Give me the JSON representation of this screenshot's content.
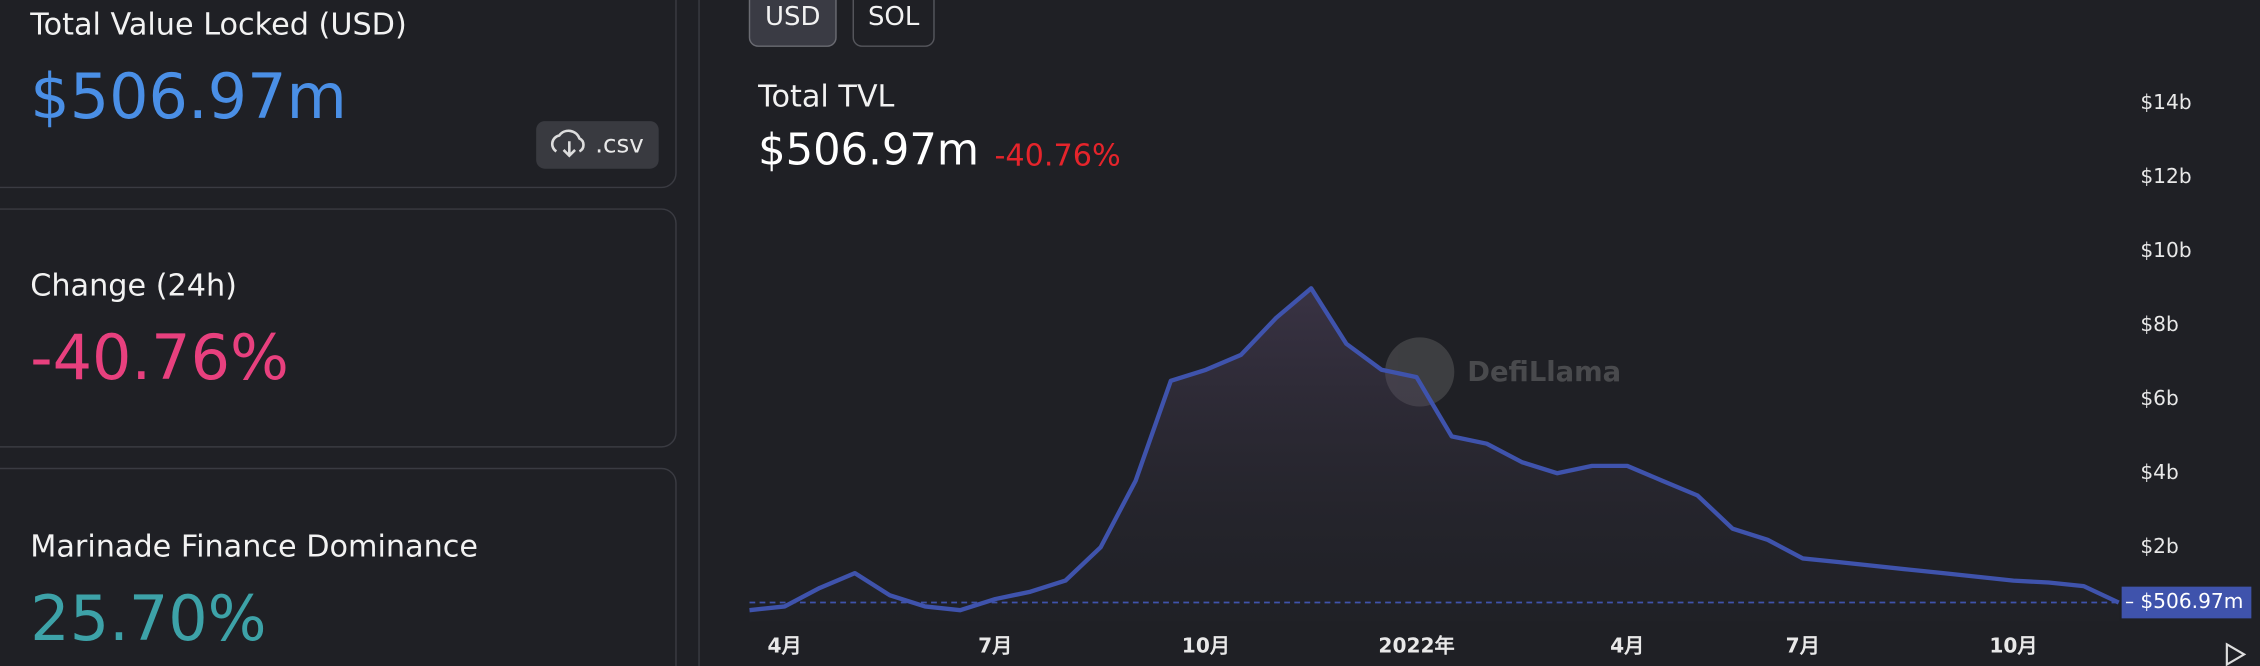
{
  "cards": [
    {
      "label": "Total Value Locked (USD)",
      "value": "$506.97m"
    },
    {
      "label": "Change (24h)",
      "value": "-40.76%"
    },
    {
      "label": "Marinade Finance Dominance",
      "value": "25.70%"
    }
  ],
  "csv_button": ".csv",
  "toggles": [
    "USD",
    "SOL"
  ],
  "chart_data": {
    "type": "area",
    "title": "Total TVL",
    "headline_value": "$506.97m",
    "headline_change": "-40.76%",
    "watermark": "DefiLlama",
    "categories": [
      null,
      "4月",
      null,
      null,
      null,
      null,
      null,
      "7月",
      null,
      null,
      null,
      null,
      null,
      "10月",
      null,
      null,
      null,
      null,
      null,
      "2022年",
      null,
      null,
      null,
      null,
      null,
      "4月",
      null,
      null,
      null,
      null,
      "7月",
      null,
      null,
      null,
      null,
      null,
      "10月",
      null,
      null,
      null
    ],
    "values": [
      0.3,
      0.4,
      0.9,
      1.3,
      0.7,
      0.4,
      0.3,
      0.6,
      0.8,
      1.1,
      2.0,
      3.8,
      6.5,
      6.8,
      7.2,
      8.2,
      9.0,
      7.5,
      6.8,
      6.6,
      5.0,
      4.8,
      4.3,
      4.0,
      4.2,
      4.2,
      3.8,
      3.4,
      2.5,
      2.2,
      1.7,
      1.6,
      1.5,
      1.4,
      1.3,
      1.2,
      1.1,
      1.05,
      0.95,
      0.50697
    ],
    "color": "#3f53ac",
    "ylim": [
      0,
      15
    ],
    "yticks": [
      {
        "value": 2,
        "label": "$2b"
      },
      {
        "value": 4,
        "label": "$4b"
      },
      {
        "value": 6,
        "label": "$6b"
      },
      {
        "value": 8,
        "label": "$8b"
      },
      {
        "value": 10,
        "label": "$10b"
      },
      {
        "value": 12,
        "label": "$12b"
      },
      {
        "value": 14,
        "label": "$14b"
      }
    ],
    "current_label": "$506.97m"
  }
}
